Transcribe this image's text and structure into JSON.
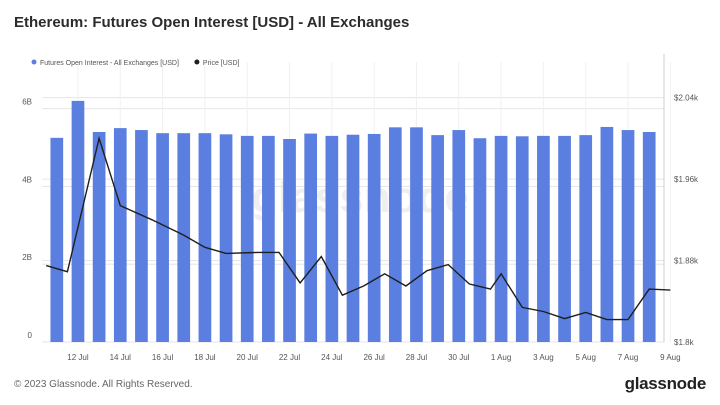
{
  "title": "Ethereum: Futures Open Interest [USD] - All Exchanges",
  "footer": "© 2023 Glassnode. All Rights Reserved.",
  "brand": "glassnode",
  "watermark": "glassnode",
  "colors": {
    "bar": "#5b7fe0",
    "price": "#1f1f1f",
    "grid": "#e6e6e6",
    "axis_text": "#555555"
  },
  "chart_data": {
    "type": "bar",
    "legend": [
      {
        "name": "Futures Open Interest - All Exchanges [USD]",
        "color": "#5b7fe0",
        "marker": "bar"
      },
      {
        "name": "Price [USD]",
        "color": "#1f1f1f",
        "marker": "line"
      }
    ],
    "legend_position": "top-left",
    "grid": true,
    "x_tick_labels": [
      "12 Jul",
      "14 Jul",
      "16 Jul",
      "18 Jul",
      "20 Jul",
      "22 Jul",
      "24 Jul",
      "26 Jul",
      "28 Jul",
      "30 Jul",
      "1 Aug",
      "3 Aug",
      "5 Aug",
      "7 Aug",
      "9 Aug"
    ],
    "x_tick_index": [
      1,
      3,
      5,
      7,
      9,
      11,
      13,
      15,
      17,
      19,
      21,
      23,
      25,
      27,
      29
    ],
    "y_left": {
      "ticks": [
        0,
        2,
        4,
        6
      ],
      "tick_labels": [
        "0",
        "2B",
        "4B",
        "6B"
      ],
      "range": [
        0,
        7.2
      ]
    },
    "y_right": {
      "ticks": [
        1.8,
        1.88,
        1.96,
        2.04
      ],
      "tick_labels": [
        "$1.8k",
        "$1.88k",
        "$1.96k",
        "$2.04k"
      ],
      "range": [
        1.8,
        2.075
      ]
    },
    "bars": {
      "name": "Futures Open Interest - All Exchanges [USD]",
      "unit": "B",
      "values": [
        5.25,
        6.2,
        5.4,
        5.5,
        5.45,
        5.37,
        5.37,
        5.37,
        5.34,
        5.3,
        5.3,
        5.22,
        5.36,
        5.3,
        5.33,
        5.35,
        5.52,
        5.52,
        5.32,
        5.45,
        5.24,
        5.3,
        5.29,
        5.3,
        5.3,
        5.32,
        5.53,
        5.45,
        5.4
      ]
    },
    "line": {
      "name": "Price [USD]",
      "unit": "k",
      "points": [
        [
          -0.5,
          1.875
        ],
        [
          0.5,
          1.869
        ],
        [
          2,
          2.0
        ],
        [
          3,
          1.934
        ],
        [
          4.5,
          1.92
        ],
        [
          6,
          1.905
        ],
        [
          7,
          1.893
        ],
        [
          8,
          1.887
        ],
        [
          9.5,
          1.888
        ],
        [
          10.5,
          1.888
        ],
        [
          11.5,
          1.858
        ],
        [
          12.5,
          1.884
        ],
        [
          13.5,
          1.846
        ],
        [
          14.5,
          1.855
        ],
        [
          15.5,
          1.867
        ],
        [
          16.5,
          1.855
        ],
        [
          17.5,
          1.87
        ],
        [
          18.5,
          1.876
        ],
        [
          19.5,
          1.857
        ],
        [
          20.5,
          1.852
        ],
        [
          21,
          1.867
        ],
        [
          22,
          1.834
        ],
        [
          23,
          1.83
        ],
        [
          24,
          1.823
        ],
        [
          25,
          1.829
        ],
        [
          26,
          1.822
        ],
        [
          27,
          1.822
        ],
        [
          28,
          1.852
        ],
        [
          29,
          1.851
        ]
      ]
    }
  }
}
